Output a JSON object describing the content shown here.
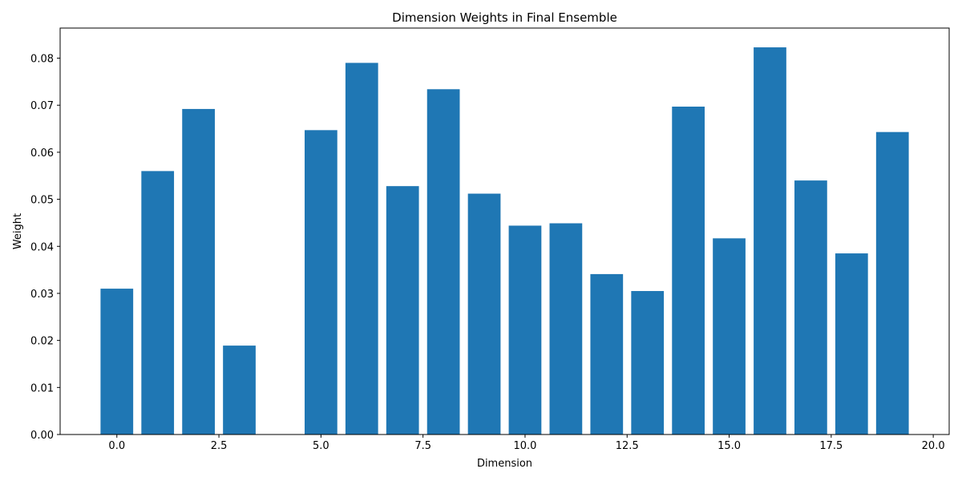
{
  "chart_data": {
    "type": "bar",
    "title": "Dimension Weights in Final Ensemble",
    "xlabel": "Dimension",
    "ylabel": "Weight",
    "x": [
      0,
      1,
      2,
      3,
      4,
      5,
      6,
      7,
      8,
      9,
      10,
      11,
      12,
      13,
      14,
      15,
      16,
      17,
      18,
      19
    ],
    "values": [
      0.031,
      0.056,
      0.0692,
      0.0189,
      0.0,
      0.0647,
      0.079,
      0.0528,
      0.0734,
      0.0512,
      0.0444,
      0.0449,
      0.0341,
      0.0305,
      0.0697,
      0.0417,
      0.0823,
      0.054,
      0.0385,
      0.0643
    ],
    "xlim": [
      -1.39,
      20.39
    ],
    "ylim": [
      0,
      0.0864
    ],
    "xticks": [
      0.0,
      2.5,
      5.0,
      7.5,
      10.0,
      12.5,
      15.0,
      17.5,
      20.0
    ],
    "xtick_labels": [
      "0.0",
      "2.5",
      "5.0",
      "7.5",
      "10.0",
      "12.5",
      "15.0",
      "17.5",
      "20.0"
    ],
    "yticks": [
      0.0,
      0.01,
      0.02,
      0.03,
      0.04,
      0.05,
      0.06,
      0.07,
      0.08
    ],
    "ytick_labels": [
      "0.00",
      "0.01",
      "0.02",
      "0.03",
      "0.04",
      "0.05",
      "0.06",
      "0.07",
      "0.08"
    ],
    "bar_width": 0.8,
    "bar_color": "#1f77b4",
    "grid": false
  }
}
